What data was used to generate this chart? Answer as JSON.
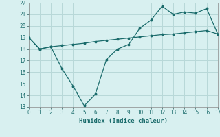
{
  "xlabel": "Humidex (Indice chaleur)",
  "line1_x": [
    0,
    1,
    2,
    3,
    4,
    5,
    6,
    7,
    8,
    9,
    10,
    11,
    12,
    13,
    14,
    15,
    16,
    17
  ],
  "line1_y": [
    19.0,
    18.0,
    18.2,
    18.3,
    18.4,
    18.5,
    18.65,
    18.75,
    18.85,
    18.95,
    19.05,
    19.15,
    19.25,
    19.3,
    19.4,
    19.5,
    19.6,
    19.3
  ],
  "line2_x": [
    0,
    1,
    2,
    3,
    4,
    5,
    6,
    7,
    8,
    9,
    10,
    11,
    12,
    13,
    14,
    15,
    16,
    17
  ],
  "line2_y": [
    19.0,
    18.0,
    18.2,
    16.3,
    14.8,
    13.1,
    14.1,
    17.1,
    18.0,
    18.4,
    19.8,
    20.5,
    21.7,
    21.0,
    21.2,
    21.1,
    21.5,
    19.3
  ],
  "line_color": "#1a6b6b",
  "bg_color": "#d8f0f0",
  "grid_color": "#b8d8d8",
  "ylim": [
    13,
    22
  ],
  "xlim": [
    0,
    17
  ],
  "yticks": [
    13,
    14,
    15,
    16,
    17,
    18,
    19,
    20,
    21,
    22
  ],
  "xticks": [
    0,
    1,
    2,
    3,
    4,
    5,
    6,
    7,
    8,
    9,
    10,
    11,
    12,
    13,
    14,
    15,
    16,
    17
  ]
}
